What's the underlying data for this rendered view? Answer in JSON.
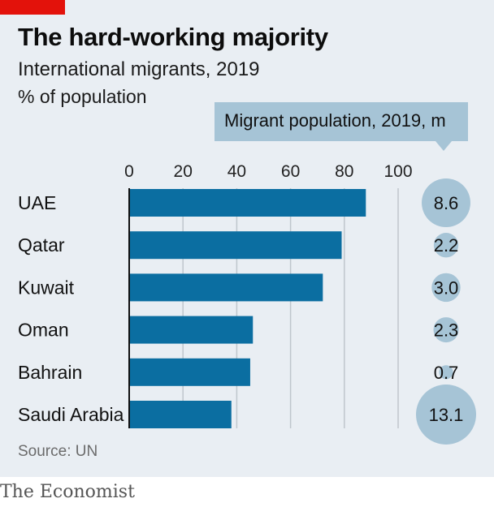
{
  "header": {
    "title": "The hard-working majority",
    "subtitle": "International migrants, 2019",
    "unit": "% of population"
  },
  "legend": {
    "label": "Migrant population, 2019, m"
  },
  "footer": {
    "source": "Source: UN",
    "logo": "The Economist"
  },
  "colors": {
    "bar": "#0b6ea1",
    "bubble": "#a6c4d6",
    "grid": "#bfc6cc",
    "background": "#e9eef3",
    "accent": "#e3120b"
  },
  "chart_data": {
    "type": "bar",
    "orientation": "horizontal",
    "categories": [
      "UAE",
      "Qatar",
      "Kuwait",
      "Oman",
      "Bahrain",
      "Saudi Arabia"
    ],
    "series": [
      {
        "values": [
          88,
          79,
          72,
          46,
          45,
          38
        ]
      }
    ],
    "bubble_values": [
      8.6,
      2.2,
      3.0,
      2.3,
      0.7,
      13.1
    ],
    "bubble_labels": [
      "8.6",
      "2.2",
      "3.0",
      "2.3",
      "0.7",
      "13.1"
    ],
    "xticks": [
      0,
      20,
      40,
      60,
      80,
      100
    ],
    "xlim": [
      0,
      100
    ],
    "grid": true
  }
}
